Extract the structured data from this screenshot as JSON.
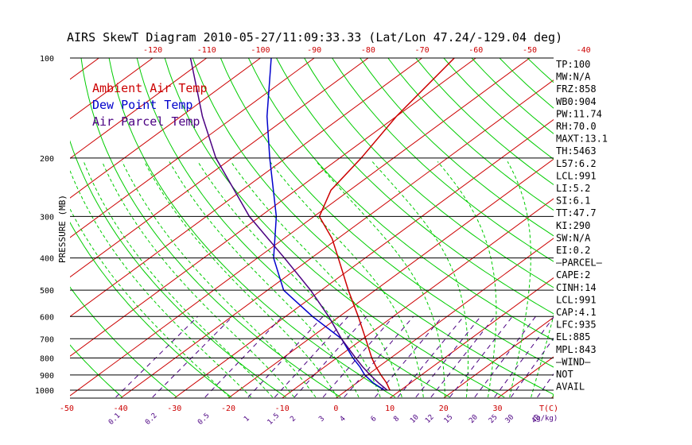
{
  "chart_data": {
    "type": "line",
    "title": "AIRS SkewT Diagram 2010-05-27/11:09:33.33 (Lat/Lon 47.24/-129.04 deg)",
    "ylabel": "PRESSURE (MB)",
    "pressure_ticks": [
      "100",
      "200",
      "300",
      "400",
      "500",
      "600",
      "700",
      "800",
      "900",
      "1000"
    ],
    "top_temp_ticks": [
      "-120",
      "-110",
      "-100",
      "-90",
      "-80",
      "-70",
      "-60",
      "-50",
      "-40"
    ],
    "bottom_temp_ticks": [
      "-50",
      "-40",
      "-30",
      "-20",
      "-10",
      "0",
      "10",
      "20",
      "30"
    ],
    "bottom_unit": "T(C)",
    "mixing_ratio_ticks": [
      "0.1",
      "0.2",
      "0.5",
      "1",
      "1.5",
      "2",
      "3",
      "4",
      "6",
      "8",
      "10",
      "12",
      "15",
      "20",
      "25",
      "30",
      "40"
    ],
    "mixing_ratio_unit": "(g/kg)",
    "ylim": [
      100,
      1050
    ],
    "series": [
      {
        "name": "Ambient Air Temp",
        "color": "#cc0000",
        "points": [
          {
            "p": 1000,
            "t": 8.0
          },
          {
            "p": 950,
            "t": 5.5
          },
          {
            "p": 900,
            "t": 2.5
          },
          {
            "p": 850,
            "t": -0.5
          },
          {
            "p": 800,
            "t": -3.5
          },
          {
            "p": 700,
            "t": -9.5
          },
          {
            "p": 600,
            "t": -16.5
          },
          {
            "p": 500,
            "t": -25.0
          },
          {
            "p": 400,
            "t": -35.0
          },
          {
            "p": 350,
            "t": -41.0
          },
          {
            "p": 300,
            "t": -49.0
          },
          {
            "p": 250,
            "t": -53.5
          },
          {
            "p": 200,
            "t": -56.0
          },
          {
            "p": 150,
            "t": -60.0
          },
          {
            "p": 100,
            "t": -64.0
          }
        ]
      },
      {
        "name": "Dew Point Temp",
        "color": "#0000cc",
        "points": [
          {
            "p": 1000,
            "t": 7.0
          },
          {
            "p": 950,
            "t": 3.0
          },
          {
            "p": 900,
            "t": -0.5
          },
          {
            "p": 850,
            "t": -3.5
          },
          {
            "p": 800,
            "t": -7.0
          },
          {
            "p": 700,
            "t": -14.0
          },
          {
            "p": 600,
            "t": -25.0
          },
          {
            "p": 500,
            "t": -37.0
          },
          {
            "p": 400,
            "t": -47.0
          },
          {
            "p": 300,
            "t": -57.0
          },
          {
            "p": 200,
            "t": -73.0
          },
          {
            "p": 150,
            "t": -84.0
          },
          {
            "p": 100,
            "t": -98.0
          }
        ]
      },
      {
        "name": "Air Parcel Temp",
        "color": "#4b0082",
        "points": [
          {
            "p": 1000,
            "t": 7.5
          },
          {
            "p": 950,
            "t": 4.0
          },
          {
            "p": 900,
            "t": 0.5
          },
          {
            "p": 850,
            "t": -3.0
          },
          {
            "p": 800,
            "t": -6.5
          },
          {
            "p": 700,
            "t": -14.0
          },
          {
            "p": 600,
            "t": -22.0
          },
          {
            "p": 500,
            "t": -32.0
          },
          {
            "p": 400,
            "t": -45.0
          },
          {
            "p": 300,
            "t": -62.0
          },
          {
            "p": 200,
            "t": -83.0
          },
          {
            "p": 150,
            "t": -96.0
          },
          {
            "p": 100,
            "t": -113.0
          }
        ]
      }
    ],
    "indices": [
      "TP:100",
      "MW:N/A",
      "FRZ:858",
      "WB0:904",
      "PW:11.74",
      "RH:70.0",
      "MAXT:13.1",
      "TH:5463",
      "L57:6.2",
      "LCL:991",
      "LI:5.2",
      "SI:6.1",
      "TT:47.7",
      "KI:290",
      "SW:N/A",
      "EI:0.2",
      "—PARCEL—",
      "CAPE:2",
      "CINH:14",
      "LCL:991",
      "CAP:4.1",
      "LFC:935",
      "EL:885",
      "MPL:843",
      "—WIND—",
      "NOT",
      "AVAIL"
    ]
  },
  "colors": {
    "temperature": "#cc0000",
    "dewpoint": "#0000cc",
    "parcel": "#4b0082",
    "dry_adiabat": "#00cc00",
    "moist_adiabat": "#00cc00",
    "mixing_ratio": "#4b0082",
    "isobar": "#000000"
  }
}
